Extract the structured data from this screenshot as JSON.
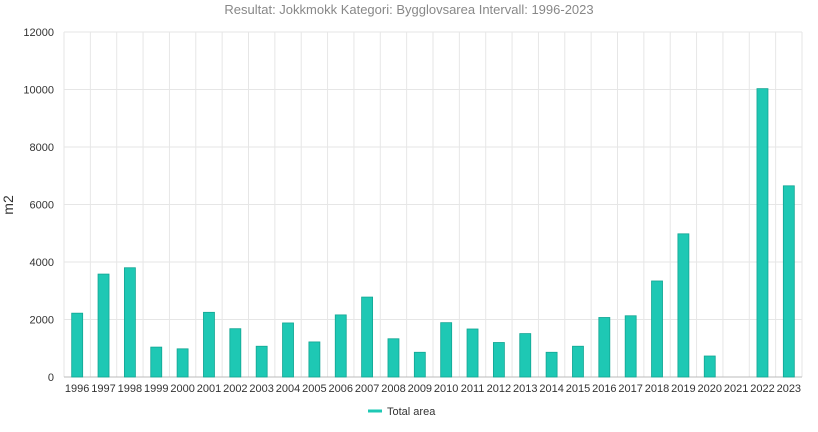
{
  "chart_data": {
    "type": "bar",
    "title": "Resultat: Jokkmokk Kategori: Bygglovsarea Intervall: 1996-2023",
    "xlabel": "",
    "ylabel": "m2",
    "ylim": [
      0,
      12000
    ],
    "yticks": [
      0,
      2000,
      4000,
      6000,
      8000,
      10000,
      12000
    ],
    "grid": true,
    "legend_position": "bottom-center",
    "categories": [
      "1996",
      "1997",
      "1998",
      "1999",
      "2000",
      "2001",
      "2002",
      "2003",
      "2004",
      "2005",
      "2006",
      "2007",
      "2008",
      "2009",
      "2010",
      "2011",
      "2012",
      "2013",
      "2014",
      "2015",
      "2016",
      "2017",
      "2018",
      "2019",
      "2020",
      "2021",
      "2022",
      "2023"
    ],
    "series": [
      {
        "name": "Total area",
        "color": "#1ec8b4",
        "values": [
          2220,
          3580,
          3800,
          1040,
          980,
          2250,
          1680,
          1070,
          1880,
          1220,
          2160,
          2780,
          1330,
          860,
          1890,
          1670,
          1200,
          1510,
          860,
          1070,
          2070,
          2130,
          3340,
          4980,
          730,
          0,
          10030,
          6650
        ]
      }
    ]
  }
}
